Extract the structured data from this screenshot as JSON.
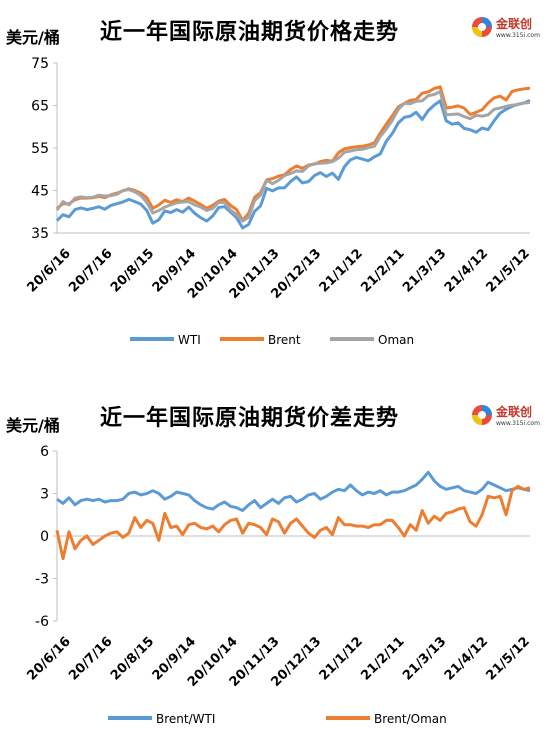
{
  "logo": {
    "name": "金联创",
    "url": "www.315i.com"
  },
  "chart_data": [
    {
      "type": "line",
      "title": "近一年国际原油期货价格走势",
      "unit": "美元/桶",
      "ylim": [
        35,
        75
      ],
      "yticks": [
        35,
        45,
        55,
        65,
        75
      ],
      "x_tick_labels": [
        "20/6/16",
        "20/7/16",
        "20/8/15",
        "20/9/14",
        "20/10/14",
        "20/11/13",
        "20/12/13",
        "21/1/12",
        "21/2/11",
        "21/3/13",
        "21/4/12",
        "21/5/12"
      ],
      "legend_position": "bottom",
      "grid": false,
      "series": [
        {
          "name": "WTI",
          "color": "#5b9bd5",
          "values": [
            37.9,
            39.3,
            38.8,
            40.5,
            40.9,
            40.5,
            40.8,
            41.2,
            40.6,
            41.5,
            41.9,
            42.3,
            42.9,
            42.4,
            41.8,
            40.3,
            37.3,
            38.1,
            40.2,
            39.8,
            40.5,
            39.9,
            41.1,
            39.6,
            38.6,
            37.8,
            39.0,
            41.0,
            41.2,
            39.9,
            38.6,
            36.2,
            37.0,
            40.1,
            41.4,
            45.5,
            44.9,
            45.6,
            45.6,
            47.1,
            48.2,
            46.8,
            47.1,
            48.5,
            49.2,
            48.3,
            49.1,
            47.6,
            50.6,
            52.2,
            52.8,
            52.4,
            52.0,
            52.9,
            53.6,
            56.6,
            58.4,
            60.9,
            62.2,
            62.5,
            63.4,
            61.7,
            63.8,
            65.1,
            66.1,
            61.4,
            60.6,
            60.9,
            59.6,
            59.3,
            58.7,
            59.7,
            59.3,
            61.4,
            63.2,
            64.1,
            64.8,
            65.3,
            65.6,
            66.2
          ]
        },
        {
          "name": "Brent",
          "color": "#ed7d31",
          "values": [
            40.8,
            41.9,
            41.9,
            42.8,
            43.2,
            43.2,
            43.3,
            43.6,
            43.3,
            44.0,
            44.4,
            44.9,
            45.4,
            45.0,
            44.4,
            43.3,
            40.8,
            41.6,
            42.7,
            42.2,
            42.8,
            42.4,
            43.2,
            42.5,
            41.7,
            40.8,
            41.5,
            42.5,
            42.9,
            41.5,
            40.5,
            38.0,
            39.6,
            43.4,
            44.5,
            47.5,
            47.8,
            48.4,
            48.7,
            49.9,
            50.8,
            50.2,
            51.0,
            51.2,
            51.8,
            52.1,
            51.9,
            53.9,
            54.8,
            55.1,
            55.3,
            55.4,
            55.7,
            56.2,
            58.5,
            60.6,
            62.6,
            64.7,
            65.5,
            66.2,
            66.4,
            67.9,
            68.2,
            69.0,
            69.4,
            64.4,
            64.6,
            64.9,
            64.4,
            62.9,
            63.4,
            64.0,
            65.6,
            66.8,
            67.2,
            66.3,
            68.3,
            68.7,
            68.9,
            69.1
          ]
        },
        {
          "name": "Oman",
          "color": "#a5a5a5",
          "values": [
            40.4,
            42.4,
            41.6,
            43.2,
            43.5,
            43.3,
            43.4,
            43.9,
            43.7,
            43.8,
            44.1,
            45.0,
            45.2,
            44.7,
            43.8,
            42.2,
            39.7,
            40.3,
            41.1,
            41.6,
            42.1,
            42.3,
            42.4,
            41.6,
            41.1,
            40.3,
            40.8,
            42.2,
            42.1,
            40.4,
            39.3,
            37.8,
            38.7,
            42.6,
            43.9,
            47.4,
            46.6,
            47.4,
            48.5,
            49.0,
            49.6,
            49.5,
            50.8,
            51.3,
            51.4,
            51.5,
            51.8,
            52.6,
            54.0,
            54.3,
            54.6,
            54.7,
            55.1,
            55.4,
            57.7,
            59.5,
            61.5,
            64.1,
            65.5,
            65.4,
            66.0,
            66.1,
            67.3,
            67.6,
            68.3,
            62.8,
            62.9,
            63.0,
            62.4,
            61.9,
            62.7,
            62.5,
            62.8,
            64.1,
            64.4,
            64.8,
            65.1,
            65.2,
            65.6,
            65.7
          ]
        }
      ]
    },
    {
      "type": "line",
      "title": "近一年国际原油期货价差走势",
      "unit": "美元/桶",
      "ylim": [
        -6,
        6
      ],
      "yticks": [
        6,
        3,
        0,
        -3,
        -6
      ],
      "x_tick_labels": [
        "20/6/16",
        "20/7/16",
        "20/8/15",
        "20/9/14",
        "20/10/14",
        "20/11/13",
        "20/12/13",
        "21/1/12",
        "21/2/11",
        "21/3/13",
        "21/4/12",
        "21/5/12"
      ],
      "legend_position": "bottom",
      "grid": false,
      "series": [
        {
          "name": "Brent/WTI",
          "color": "#5b9bd5",
          "values": [
            2.6,
            2.3,
            2.7,
            2.2,
            2.5,
            2.6,
            2.5,
            2.6,
            2.4,
            2.5,
            2.5,
            2.6,
            3.0,
            3.1,
            2.9,
            3.0,
            3.2,
            3.0,
            2.6,
            2.8,
            3.1,
            3.0,
            2.9,
            2.5,
            2.2,
            2.0,
            1.9,
            2.2,
            2.4,
            2.1,
            2.0,
            1.8,
            2.2,
            2.5,
            2.0,
            2.3,
            2.6,
            2.3,
            2.7,
            2.8,
            2.4,
            2.6,
            2.9,
            3.0,
            2.6,
            2.8,
            3.1,
            3.3,
            3.2,
            3.6,
            3.2,
            2.9,
            3.1,
            3.0,
            3.2,
            2.9,
            3.1,
            3.1,
            3.2,
            3.4,
            3.6,
            4.0,
            4.5,
            3.9,
            3.5,
            3.3,
            3.4,
            3.5,
            3.2,
            3.1,
            3.0,
            3.3,
            3.8,
            3.6,
            3.4,
            3.2,
            3.3,
            3.4,
            3.3,
            3.2
          ]
        },
        {
          "name": "Brent/Oman",
          "color": "#ed7d31",
          "values": [
            0.4,
            -1.6,
            0.3,
            -0.9,
            -0.3,
            0.0,
            -0.6,
            -0.3,
            0.0,
            0.2,
            0.3,
            -0.1,
            0.2,
            1.3,
            0.6,
            1.1,
            0.9,
            -0.3,
            1.6,
            0.6,
            0.7,
            0.1,
            0.8,
            0.9,
            0.6,
            0.5,
            0.7,
            0.3,
            0.8,
            1.1,
            1.2,
            0.2,
            0.9,
            0.8,
            0.6,
            0.1,
            1.2,
            1.0,
            0.2,
            0.9,
            1.2,
            0.7,
            0.2,
            -0.1,
            0.4,
            0.6,
            0.1,
            1.3,
            0.8,
            0.8,
            0.7,
            0.7,
            0.6,
            0.8,
            0.8,
            1.1,
            1.1,
            0.6,
            0.0,
            0.8,
            0.4,
            1.8,
            0.9,
            1.4,
            1.1,
            1.6,
            1.7,
            1.9,
            2.0,
            1.0,
            0.7,
            1.5,
            2.8,
            2.7,
            2.8,
            1.5,
            3.2,
            3.5,
            3.3,
            3.4
          ]
        }
      ]
    }
  ]
}
